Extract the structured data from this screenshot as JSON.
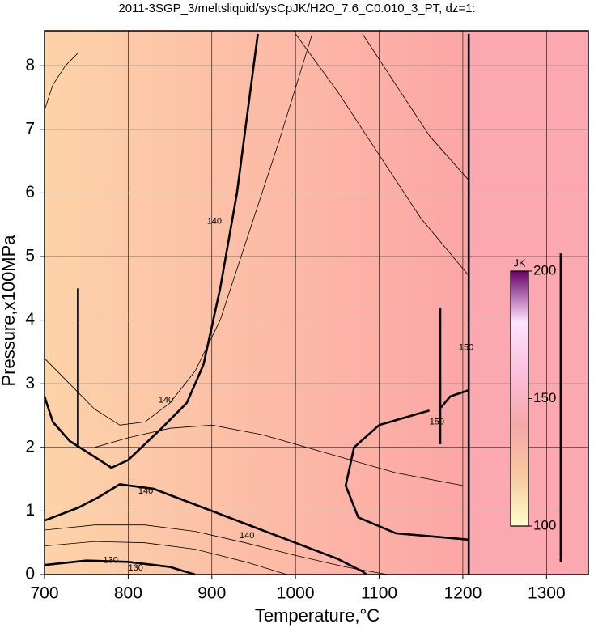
{
  "chart_data": {
    "type": "contour",
    "title": "2011-3SGP_3/meltsliquid/sysCpJK/H2O_7.6_C0.010_3_PT, dz=1:",
    "xlabel": "Temperature,°C",
    "ylabel": "Pressure,x100MPa",
    "xlim": [
      700,
      1350
    ],
    "ylim": [
      0,
      8.55
    ],
    "xticks": [
      700,
      800,
      900,
      1000,
      1100,
      1200,
      1300
    ],
    "yticks": [
      0,
      1,
      2,
      3,
      4,
      5,
      6,
      7,
      8
    ],
    "grid": true,
    "contours": [
      {
        "bold": true,
        "x": [
          700,
          710,
          730,
          760,
          780,
          800,
          840,
          870,
          890,
          910,
          930,
          945,
          955
        ],
        "y": [
          2.8,
          2.4,
          2.1,
          1.85,
          1.68,
          1.8,
          2.3,
          2.7,
          3.3,
          4.5,
          6.0,
          7.5,
          8.5
        ]
      },
      {
        "bold": true,
        "x": [
          700,
          740,
          765,
          790,
          830,
          880,
          950,
          1000,
          1050,
          1080,
          1085
        ],
        "y": [
          0.85,
          1.05,
          1.22,
          1.42,
          1.35,
          1.1,
          0.75,
          0.5,
          0.25,
          0.05,
          0
        ]
      },
      {
        "bold": true,
        "x": [
          1160,
          1100,
          1070,
          1060,
          1075,
          1120,
          1207
        ],
        "y": [
          2.58,
          2.35,
          2.0,
          1.4,
          0.9,
          0.65,
          0.55
        ]
      },
      {
        "bold": true,
        "x": [
          700,
          750,
          800,
          850,
          880
        ],
        "y": [
          0.15,
          0.22,
          0.2,
          0.12,
          0
        ]
      },
      {
        "bold": true,
        "x": [
          1207,
          1207
        ],
        "y": [
          0,
          8.5
        ]
      },
      {
        "bold": true,
        "x": [
          1207,
          1185,
          1172
        ],
        "y": [
          2.9,
          2.8,
          2.6
        ]
      },
      {
        "bold": true,
        "x": [
          740,
          740
        ],
        "y": [
          2.0,
          4.5
        ]
      },
      {
        "bold": true,
        "x": [
          1173,
          1173
        ],
        "y": [
          2.05,
          4.2
        ]
      },
      {
        "bold": true,
        "x": [
          1317,
          1317
        ],
        "y": [
          0.2,
          5.05
        ]
      },
      {
        "bold": false,
        "x": [
          700,
          760,
          820,
          880,
          940,
          1000,
          1060,
          1110
        ],
        "y": [
          0.7,
          0.78,
          0.78,
          0.68,
          0.5,
          0.3,
          0.12,
          0
        ]
      },
      {
        "bold": false,
        "x": [
          700,
          760,
          820,
          880,
          940,
          990
        ],
        "y": [
          0.45,
          0.52,
          0.5,
          0.4,
          0.2,
          0
        ]
      },
      {
        "bold": false,
        "x": [
          700,
          730,
          760,
          790,
          820,
          850,
          880,
          910,
          940,
          980,
          1020
        ],
        "y": [
          3.4,
          3.0,
          2.6,
          2.35,
          2.4,
          2.7,
          3.2,
          4.0,
          5.2,
          6.8,
          8.5
        ]
      },
      {
        "bold": false,
        "x": [
          760,
          800,
          850,
          900,
          960,
          1040,
          1120,
          1200
        ],
        "y": [
          2.0,
          2.15,
          2.3,
          2.35,
          2.2,
          1.9,
          1.6,
          1.4
        ]
      },
      {
        "bold": false,
        "x": [
          1000,
          1050,
          1100,
          1150,
          1207
        ],
        "y": [
          8.5,
          7.6,
          6.6,
          5.6,
          4.7
        ]
      },
      {
        "bold": false,
        "x": [
          1080,
          1120,
          1160,
          1207
        ],
        "y": [
          8.5,
          7.7,
          6.9,
          6.2
        ]
      },
      {
        "bold": false,
        "x": [
          700,
          710,
          725,
          740
        ],
        "y": [
          7.3,
          7.7,
          8.0,
          8.2
        ]
      }
    ],
    "contour_labels": [
      {
        "text": "140",
        "x": 903,
        "y": 5.55
      },
      {
        "text": "140",
        "x": 845,
        "y": 2.74
      },
      {
        "text": "140",
        "x": 821,
        "y": 1.31
      },
      {
        "text": "140",
        "x": 942,
        "y": 0.61
      },
      {
        "text": "130",
        "x": 779,
        "y": 0.22
      },
      {
        "text": "130",
        "x": 809,
        "y": 0.1
      },
      {
        "text": "150",
        "x": 1169,
        "y": 2.4
      },
      {
        "text": "150",
        "x": 1204,
        "y": 3.57
      }
    ],
    "colorbar": {
      "label": "JK",
      "lim": [
        100,
        200
      ],
      "ticks": [
        100,
        150,
        200
      ],
      "colors": [
        "#ffffcc",
        "#f6c8a0",
        "#f4a8a8",
        "#fbc0dc",
        "#ffe4ff",
        "#660066"
      ]
    }
  }
}
